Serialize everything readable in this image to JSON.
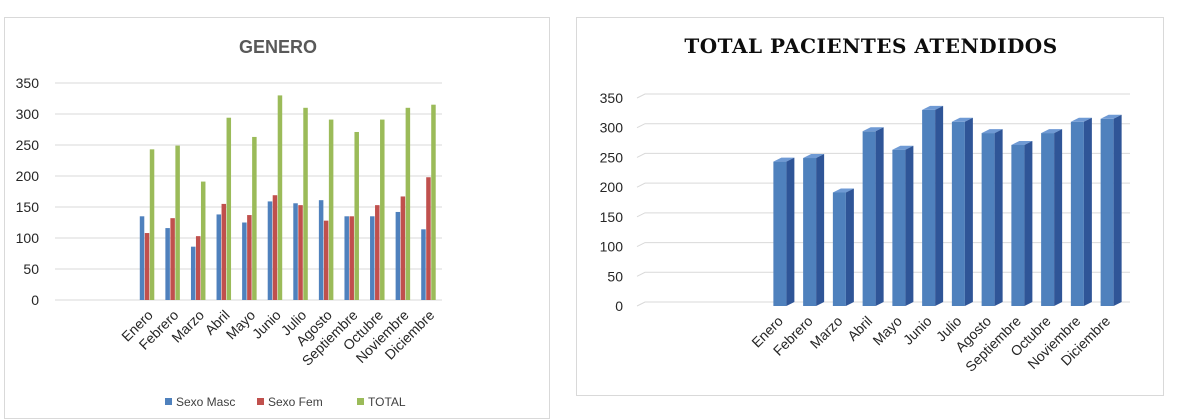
{
  "chart_data": [
    {
      "type": "bar",
      "title": "GENERO",
      "categories": [
        "Enero",
        "Febrero",
        "Marzo",
        "Abril",
        "Mayo",
        "Junio",
        "Julio",
        "Agosto",
        "Septiembre",
        "Octubre",
        "Noviembre",
        "Diciembre"
      ],
      "series": [
        {
          "name": "Sexo Masc",
          "color": "#4f81bd",
          "values": [
            135,
            116,
            86,
            138,
            125,
            159,
            156,
            161,
            135,
            135,
            142,
            114
          ]
        },
        {
          "name": "Sexo Fem",
          "color": "#c0504d",
          "values": [
            108,
            132,
            103,
            155,
            137,
            169,
            153,
            128,
            135,
            153,
            167,
            198
          ]
        },
        {
          "name": "TOTAL",
          "color": "#9bbb59",
          "values": [
            243,
            249,
            191,
            294,
            263,
            330,
            310,
            291,
            271,
            291,
            310,
            315
          ]
        }
      ],
      "yticks": [
        0,
        50,
        100,
        150,
        200,
        250,
        300,
        350
      ],
      "ylim": [
        0,
        350
      ],
      "grid": true,
      "legend": "bottom"
    },
    {
      "type": "bar",
      "title": "TOTAL PACIENTES ATENDIDOS",
      "categories": [
        "Enero",
        "Febrero",
        "Marzo",
        "Abril",
        "Mayo",
        "Junio",
        "Julio",
        "Agosto",
        "Septiembre",
        "Octubre",
        "Noviembre",
        "Diciembre"
      ],
      "series": [
        {
          "color": "#4f81bd",
          "values": [
            243,
            249,
            191,
            294,
            263,
            330,
            310,
            291,
            271,
            291,
            310,
            315
          ]
        }
      ],
      "yticks": [
        0,
        50,
        100,
        150,
        200,
        250,
        300,
        350
      ],
      "ylim": [
        0,
        350
      ],
      "grid": true,
      "style": "3d-column"
    }
  ]
}
